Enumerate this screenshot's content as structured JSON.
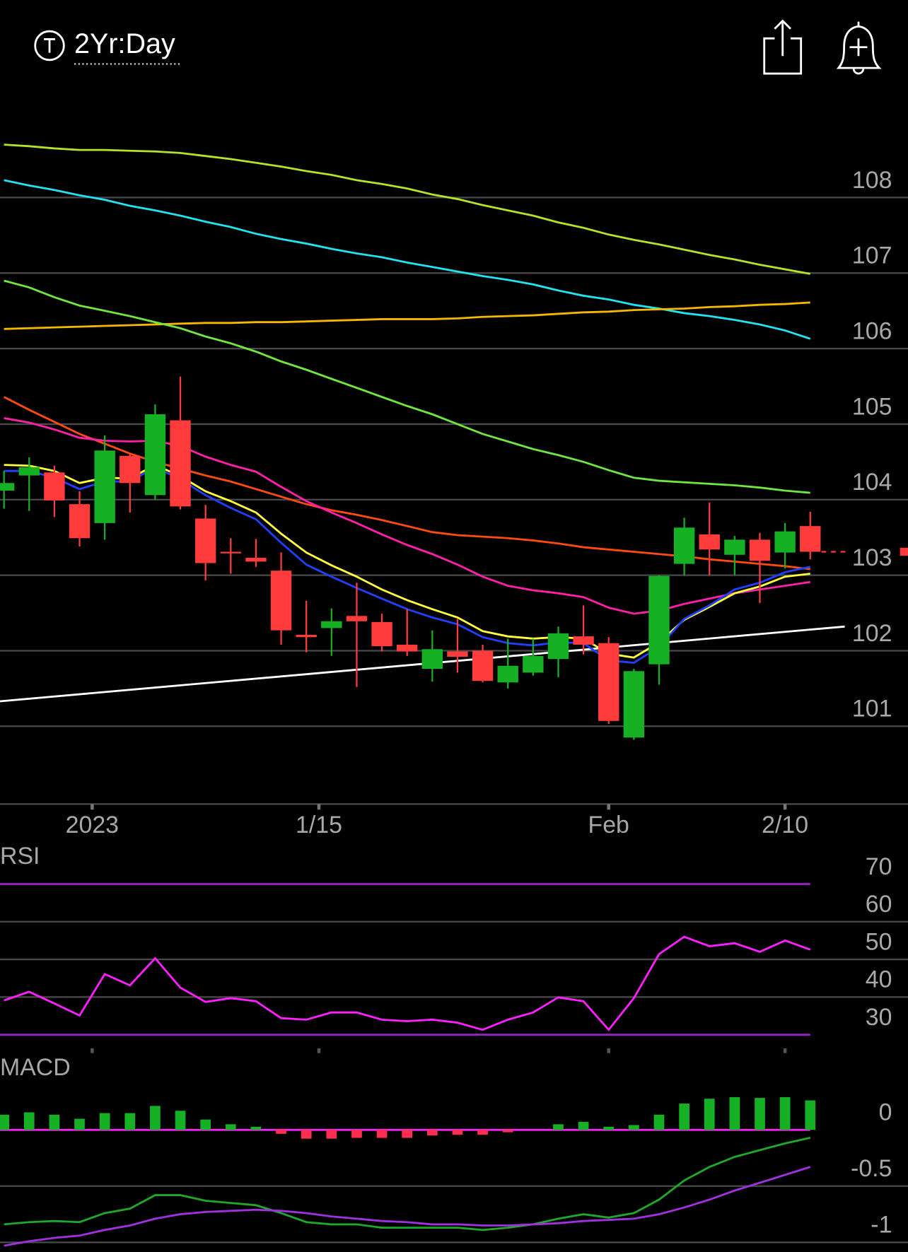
{
  "header": {
    "timeframe": "2Yr:Day"
  },
  "chart_data": [
    {
      "type": "candlestick",
      "xlim": [
        -0.158,
        35.88
      ],
      "xticks": [
        {
          "value": 3.5,
          "label": "2023"
        },
        {
          "value": 12.5,
          "label": "1/15"
        },
        {
          "value": 24,
          "label": "Feb"
        },
        {
          "value": 31,
          "label": "2/10"
        }
      ],
      "ylim": [
        99.97,
        109.24
      ],
      "yticks": [
        101,
        102,
        103,
        104,
        105,
        106,
        107,
        108
      ],
      "grid": true,
      "up_color": "#16b024",
      "down_color": "#ff3b3b",
      "open": [
        104.12,
        104.32,
        104.36,
        103.94,
        103.69,
        104.58,
        104.06,
        105.05,
        103.75,
        103.31,
        103.23,
        103.06,
        102.21,
        102.3,
        102.46,
        102.38,
        102.08,
        101.76,
        101.99,
        102.0,
        101.58,
        101.71,
        101.89,
        102.19,
        102.1,
        100.85,
        101.82,
        103.15,
        103.54,
        103.27,
        103.47,
        103.3,
        103.65
      ],
      "high": [
        104.38,
        104.56,
        104.45,
        104.11,
        104.85,
        104.61,
        105.26,
        105.63,
        103.93,
        103.49,
        103.48,
        103.3,
        102.66,
        102.56,
        102.9,
        102.49,
        102.55,
        102.27,
        102.42,
        102.08,
        102.16,
        102.16,
        102.32,
        102.6,
        102.18,
        101.76,
        103.0,
        103.76,
        103.96,
        103.52,
        103.56,
        103.69,
        103.84
      ],
      "low": [
        103.88,
        103.85,
        103.77,
        103.38,
        103.47,
        103.83,
        104.0,
        103.87,
        102.93,
        103.02,
        103.11,
        102.08,
        101.98,
        101.93,
        101.52,
        101.99,
        101.93,
        101.59,
        101.71,
        101.58,
        101.5,
        101.67,
        101.65,
        101.95,
        101.03,
        100.82,
        101.55,
        103.0,
        103.0,
        103.0,
        102.63,
        103.09,
        103.21
      ],
      "close": [
        104.22,
        104.43,
        103.99,
        103.49,
        104.65,
        104.22,
        105.13,
        103.91,
        103.16,
        103.29,
        103.18,
        102.27,
        102.18,
        102.39,
        102.39,
        102.06,
        101.99,
        102.02,
        101.92,
        101.6,
        101.8,
        101.93,
        102.23,
        102.08,
        101.07,
        101.73,
        102.99,
        103.63,
        103.34,
        103.47,
        103.19,
        103.58,
        103.31
      ],
      "series": [
        {
          "color": "#b4e32a",
          "values": [
            108.7,
            108.68,
            108.65,
            108.63,
            108.63,
            108.62,
            108.61,
            108.59,
            108.55,
            108.51,
            108.46,
            108.41,
            108.35,
            108.3,
            108.23,
            108.18,
            108.12,
            108.04,
            107.98,
            107.9,
            107.83,
            107.76,
            107.67,
            107.6,
            107.51,
            107.44,
            107.38,
            107.31,
            107.24,
            107.18,
            107.11,
            107.05,
            106.99
          ]
        },
        {
          "color": "#22e3f0",
          "values": [
            108.23,
            108.16,
            108.1,
            108.03,
            107.97,
            107.89,
            107.83,
            107.76,
            107.68,
            107.61,
            107.52,
            107.45,
            107.39,
            107.32,
            107.26,
            107.21,
            107.14,
            107.08,
            107.02,
            106.96,
            106.91,
            106.85,
            106.77,
            106.7,
            106.65,
            106.58,
            106.53,
            106.47,
            106.43,
            106.38,
            106.32,
            106.24,
            106.13
          ]
        },
        {
          "color": "#f5b800",
          "values": [
            106.26,
            106.27,
            106.28,
            106.29,
            106.3,
            106.31,
            106.32,
            106.33,
            106.34,
            106.34,
            106.35,
            106.35,
            106.36,
            106.37,
            106.38,
            106.39,
            106.39,
            106.39,
            106.4,
            106.42,
            106.43,
            106.44,
            106.46,
            106.48,
            106.49,
            106.51,
            106.52,
            106.53,
            106.55,
            106.56,
            106.58,
            106.59,
            106.61
          ]
        },
        {
          "color": "#70e640",
          "values": [
            106.9,
            106.81,
            106.68,
            106.57,
            106.5,
            106.43,
            106.35,
            106.27,
            106.16,
            106.07,
            105.96,
            105.83,
            105.72,
            105.6,
            105.48,
            105.36,
            105.24,
            105.13,
            105.0,
            104.87,
            104.77,
            104.67,
            104.59,
            104.5,
            104.39,
            104.29,
            104.25,
            104.23,
            104.21,
            104.19,
            104.16,
            104.12,
            104.09
          ]
        },
        {
          "color": "#ff4a10",
          "values": [
            105.36,
            105.19,
            105.03,
            104.87,
            104.74,
            104.61,
            104.5,
            104.41,
            104.32,
            104.24,
            104.14,
            104.04,
            103.94,
            103.86,
            103.8,
            103.73,
            103.65,
            103.57,
            103.53,
            103.51,
            103.49,
            103.46,
            103.42,
            103.37,
            103.34,
            103.31,
            103.28,
            103.25,
            103.21,
            103.18,
            103.15,
            103.12,
            103.08
          ]
        },
        {
          "color": "#ff1fa8",
          "values": [
            105.08,
            105.02,
            104.93,
            104.82,
            104.78,
            104.77,
            104.78,
            104.71,
            104.57,
            104.46,
            104.37,
            104.17,
            103.98,
            103.83,
            103.69,
            103.54,
            103.4,
            103.28,
            103.14,
            102.98,
            102.86,
            102.8,
            102.76,
            102.71,
            102.57,
            102.49,
            102.53,
            102.62,
            102.69,
            102.76,
            102.81,
            102.86,
            102.91
          ]
        },
        {
          "color": "#ffff40",
          "values": [
            104.46,
            104.45,
            104.38,
            104.22,
            104.29,
            104.28,
            104.46,
            104.31,
            104.11,
            103.98,
            103.83,
            103.55,
            103.3,
            103.13,
            102.98,
            102.81,
            102.67,
            102.55,
            102.44,
            102.26,
            102.19,
            102.16,
            102.18,
            102.16,
            101.96,
            101.91,
            102.11,
            102.41,
            102.58,
            102.76,
            102.85,
            102.98,
            103.02
          ]
        },
        {
          "color": "#2040ff",
          "values": [
            104.38,
            104.38,
            104.29,
            104.14,
            104.24,
            104.24,
            104.43,
            104.27,
            104.06,
            103.89,
            103.74,
            103.43,
            103.14,
            102.98,
            102.83,
            102.69,
            102.55,
            102.44,
            102.35,
            102.18,
            102.1,
            102.07,
            102.11,
            102.1,
            101.87,
            101.84,
            102.05,
            102.42,
            102.6,
            102.81,
            102.9,
            103.04,
            103.11
          ]
        }
      ],
      "trendline": {
        "color": "#ffffff",
        "x": [
          -0.158,
          33.37
        ],
        "values": [
          101.33,
          102.32
        ]
      }
    },
    {
      "type": "line",
      "title": "RSI",
      "xlim": [
        -0.158,
        35.88
      ],
      "ylim": [
        26.6,
        80
      ],
      "yticks": [
        70,
        60,
        50,
        40,
        30
      ],
      "grid": true,
      "edge_tick_color": "#9a22c8",
      "series": [
        {
          "color": "#ff20ff",
          "values": [
            39.1,
            41.4,
            38.3,
            35.1,
            46.1,
            43.1,
            50.3,
            42.5,
            38.7,
            39.7,
            38.9,
            34.4,
            34.0,
            35.9,
            35.9,
            34.0,
            33.6,
            34.0,
            33.2,
            31.3,
            34.0,
            35.9,
            39.9,
            38.9,
            31.3,
            39.7,
            51.4,
            56.0,
            53.5,
            54.3,
            52.0,
            55.0,
            52.6
          ]
        }
      ]
    },
    {
      "type": "macd",
      "title": "MACD",
      "xlim": [
        -0.158,
        35.88
      ],
      "ylim": [
        -1.085,
        0.64
      ],
      "yticks": [
        0,
        -0.5,
        -1
      ],
      "grid": true,
      "zero_line_color": "#ff20ff",
      "up_color": "#16b024",
      "down_color": "#ff2d50",
      "histogram": [
        0.135,
        0.156,
        0.135,
        0.099,
        0.149,
        0.149,
        0.213,
        0.17,
        0.092,
        0.05,
        0.028,
        -0.035,
        -0.078,
        -0.078,
        -0.071,
        -0.071,
        -0.071,
        -0.05,
        -0.043,
        -0.043,
        -0.021,
        0,
        0.05,
        0.071,
        0.028,
        0.043,
        0.135,
        0.234,
        0.277,
        0.291,
        0.284,
        0.291,
        0.262
      ],
      "series": [
        {
          "color": "#1fa82a",
          "values": [
            -0.84,
            -0.82,
            -0.81,
            -0.82,
            -0.74,
            -0.7,
            -0.58,
            -0.58,
            -0.63,
            -0.65,
            -0.67,
            -0.74,
            -0.82,
            -0.84,
            -0.84,
            -0.87,
            -0.87,
            -0.87,
            -0.87,
            -0.89,
            -0.87,
            -0.84,
            -0.79,
            -0.75,
            -0.78,
            -0.74,
            -0.62,
            -0.45,
            -0.33,
            -0.24,
            -0.18,
            -0.12,
            -0.07
          ]
        },
        {
          "color": "#a030e0",
          "values": [
            -1.03,
            -0.99,
            -0.96,
            -0.94,
            -0.89,
            -0.85,
            -0.79,
            -0.75,
            -0.73,
            -0.72,
            -0.71,
            -0.72,
            -0.74,
            -0.77,
            -0.79,
            -0.81,
            -0.82,
            -0.84,
            -0.84,
            -0.85,
            -0.85,
            -0.84,
            -0.83,
            -0.81,
            -0.8,
            -0.79,
            -0.75,
            -0.69,
            -0.62,
            -0.54,
            -0.47,
            -0.4,
            -0.33
          ]
        }
      ]
    }
  ]
}
